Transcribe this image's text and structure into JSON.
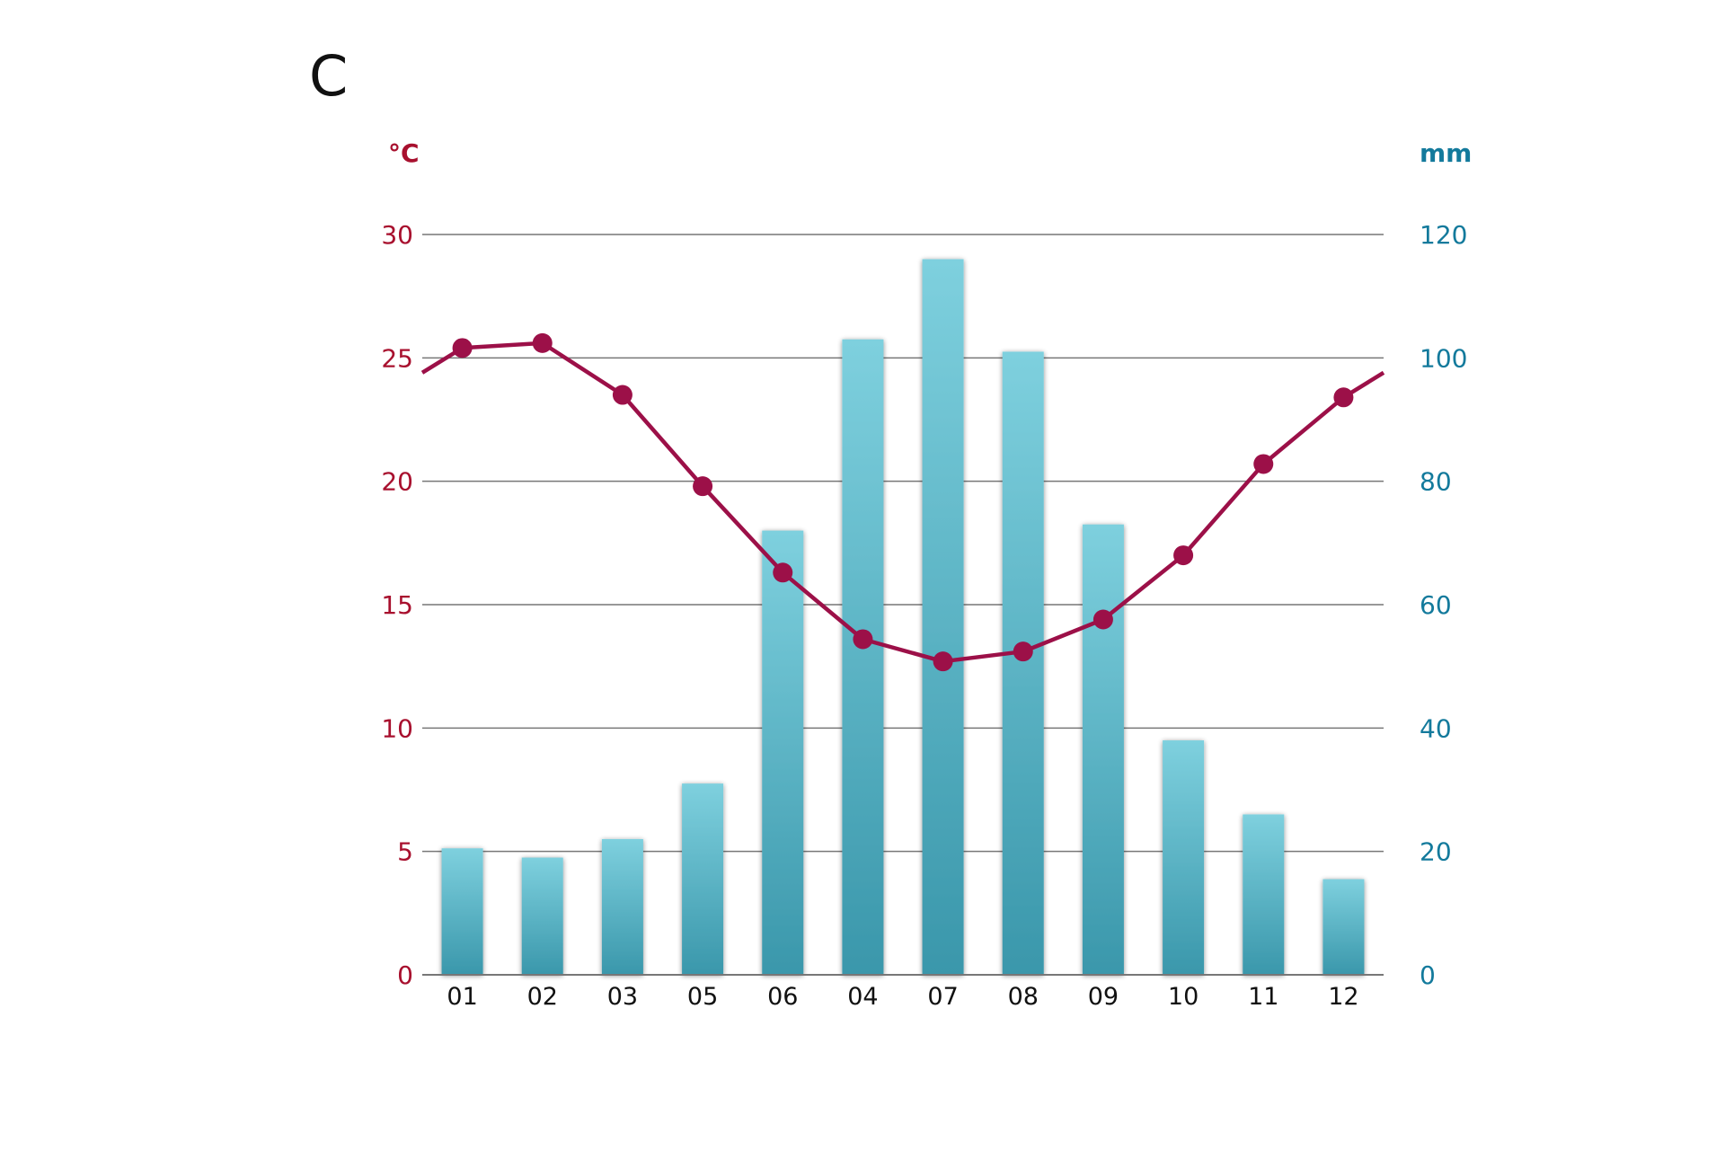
{
  "panel_label": "C",
  "colors": {
    "temperature": "#9c1048",
    "temperature_axis": "#a8102e",
    "precipitation_axis": "#137a9c",
    "bar_top": "#7ed0de",
    "bar_bottom": "#3a97ab",
    "grid": "#777777"
  },
  "chart_data": {
    "type": "bar+line",
    "title": "",
    "categories": [
      "01",
      "02",
      "03",
      "05",
      "06",
      "04",
      "07",
      "08",
      "09",
      "10",
      "11",
      "12"
    ],
    "left_axis": {
      "label": "°C",
      "ylim": [
        0,
        30
      ],
      "ticks": [
        "0",
        "5",
        "10",
        "15",
        "20",
        "25",
        "30"
      ]
    },
    "right_axis": {
      "label": "mm",
      "ylim": [
        0,
        120
      ],
      "ticks": [
        "0",
        "20",
        "40",
        "60",
        "80",
        "100",
        "120"
      ]
    },
    "series": [
      {
        "name": "precipitation",
        "type": "bar",
        "axis": "right",
        "values": [
          20.5,
          19,
          22,
          31,
          72,
          103,
          116,
          101,
          73,
          38,
          26,
          15.5
        ]
      },
      {
        "name": "temperature",
        "type": "line",
        "axis": "left",
        "values": [
          25.4,
          25.6,
          23.5,
          19.8,
          16.3,
          13.6,
          12.7,
          13.1,
          14.4,
          17.0,
          20.7,
          23.4
        ]
      }
    ],
    "grid": true,
    "legend": "none"
  }
}
